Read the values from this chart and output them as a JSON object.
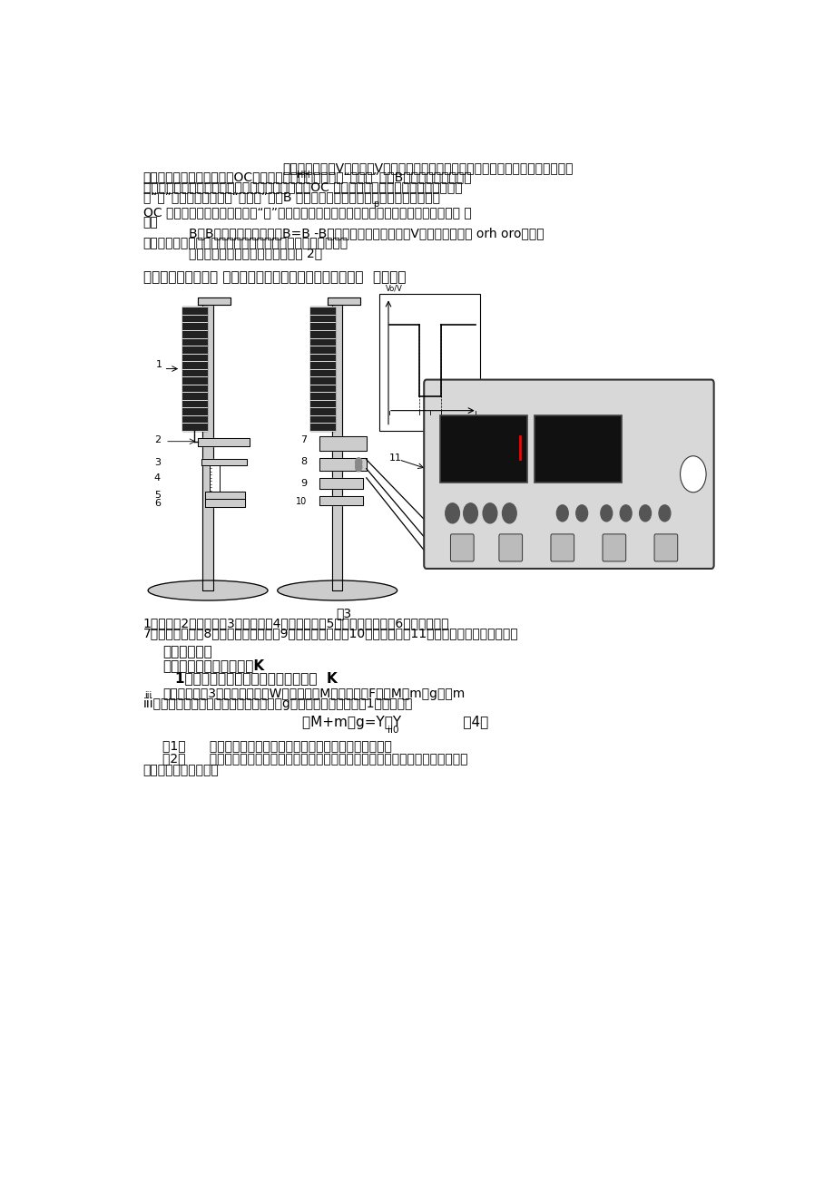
{
  "page_bg": "#ffffff",
  "figsize": [
    9.2,
    13.01
  ],
  "dpi": 100,
  "line1": "一个霍尔电势巪V输出，该V信号经放大器放大以后送至施密特触发器整形，使触发器",
  "line2": "整形，使其成为方波输送到OC门输出。当施加的磁场达到“工作点”（即B）时，触发器输出。",
  "line3": "高电压（相对于地电位），使三极管导通，此时，OC 门输出端输出低电压，通常称这种状态",
  "line4": "为“开”当施加的磁场达到“释放点”（即B ）时，触发器输出低电压，三极管截止，使",
  "line5": "OC 门输出高电压，这时称其为“关”态，这样两次高电压变换，使霍尔开关完成了一次开关 动",
  "line6": "作。",
  "line7": "B与B的差值一定，此差值B=B -B称为磁滞，在此差值内，V保持不变，因而 orh oro使开关",
  "line8": "输出稳定可靠，这也就是集成霍尔开关传感器优良特性之一。",
  "line9": "集成霍尔开关传感器输出特性如图 2。",
  "sec_header": "《实验仓器和用具》 集成霍尔传感器特性与简谐振动实验仪  仓器结构",
  "sec_header2": "《实验内容》",
  "sec1_title": "一、测量弹簧的倨强系数K",
  "sec1_sub": "1、利用新型焦利秤测定弹簧倨强系数  K",
  "para1": "实验装置如图3所示。在牀码盘W中放置牀码M，则作用力F＝（M＋m）g式中m",
  "para2": "iii为牀码盘质量与弹簧的有效质量之和，g为重力加速度。利用（1）式可得：",
  "formula": "（M+m）g=Y－Y              （4）",
  "formula_sub": "ii0",
  "step1": "（1）      调节实验装置底脚联丝，使焦利秤立柱垂直（目测）；",
  "step2_line1": "（2）      将弹簧固定在焦利秤上部悬臂上，旋转悬臂，使挂于弹簧下放的牀码盘的尖针",
  "step2_line2": "靠拢游标尺上的小镜；",
  "cap_fig3": "图3",
  "cap1": "1、弹簧，2、牀码盘，3、平面镜，4、游标卡尺，5、卡尺固定螺母，6、调节螺母，",
  "cap2": "7、牀码和磁鑰，8、开关霍尔传感器，9、水平调节螺丝，10、锁紧螺丝，11、计时电压测量稳压组合仪"
}
